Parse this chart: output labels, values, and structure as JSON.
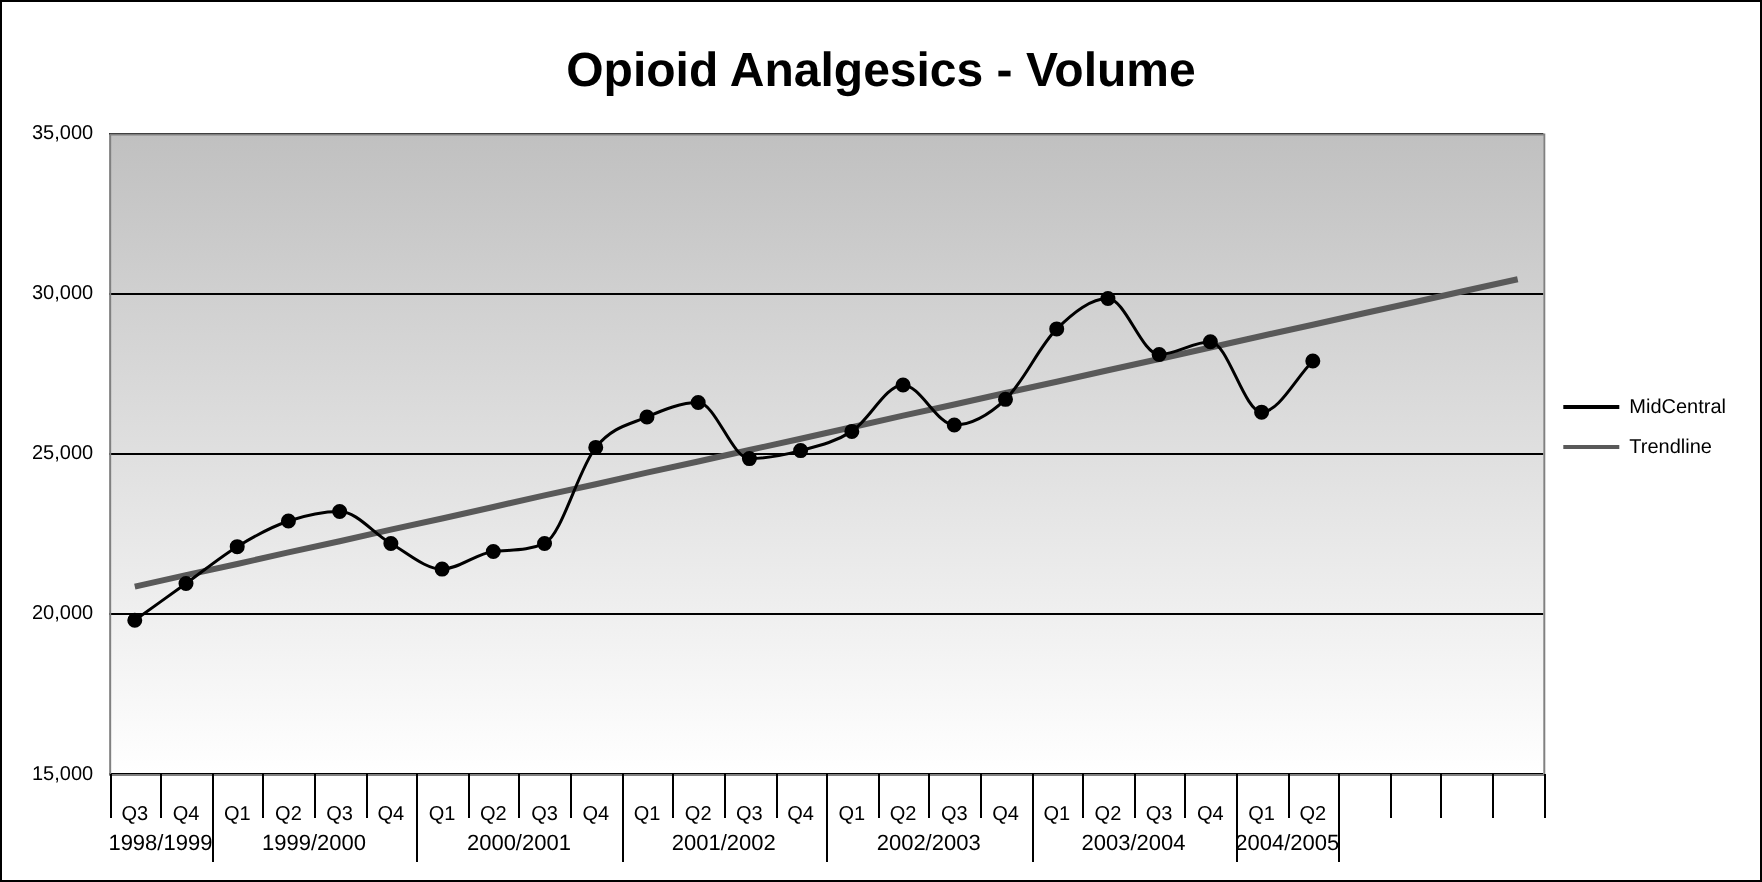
{
  "chart_data": {
    "type": "line",
    "title": "Opioid Analgesics - Volume",
    "categories": [
      "Q3",
      "Q4",
      "Q1",
      "Q2",
      "Q3",
      "Q4",
      "Q1",
      "Q2",
      "Q3",
      "Q4",
      "Q1",
      "Q2",
      "Q3",
      "Q4",
      "Q1",
      "Q2",
      "Q3",
      "Q4",
      "Q1",
      "Q2",
      "Q3",
      "Q4",
      "Q1",
      "Q2",
      null,
      null,
      null,
      null
    ],
    "series": [
      {
        "name": "MidCentral",
        "color": "#000000",
        "marker": "circle",
        "values": [
          19800,
          20950,
          22100,
          22900,
          23200,
          22200,
          21400,
          21950,
          22200,
          25200,
          26150,
          26600,
          24850,
          25100,
          25700,
          27150,
          25900,
          26700,
          28900,
          29850,
          28100,
          28500,
          26300,
          27900,
          null,
          null,
          null,
          null
        ]
      },
      {
        "name": "Trendline",
        "color": "#595959",
        "marker": "none",
        "values": [
          20850,
          21210,
          21560,
          21920,
          22270,
          22630,
          22980,
          23340,
          23700,
          24050,
          24410,
          24760,
          25120,
          25470,
          25830,
          26190,
          26540,
          26900,
          27250,
          27610,
          27960,
          28320,
          28680,
          29030,
          29390,
          29740,
          30100,
          30450
        ]
      }
    ],
    "ylim": [
      15000,
      35000
    ],
    "yticks": [
      {
        "value": 15000,
        "label": "15,000"
      },
      {
        "value": 20000,
        "label": "20,000"
      },
      {
        "value": 25000,
        "label": "25,000"
      },
      {
        "value": 30000,
        "label": "30,000"
      },
      {
        "value": 35000,
        "label": "35,000"
      }
    ],
    "grid": "y",
    "legend": "right",
    "annotations": [
      "1998/1999",
      "1999/2000",
      "2000/2001",
      "2001/2002",
      "2002/2003",
      "2003/2004",
      "2004/2005"
    ]
  }
}
